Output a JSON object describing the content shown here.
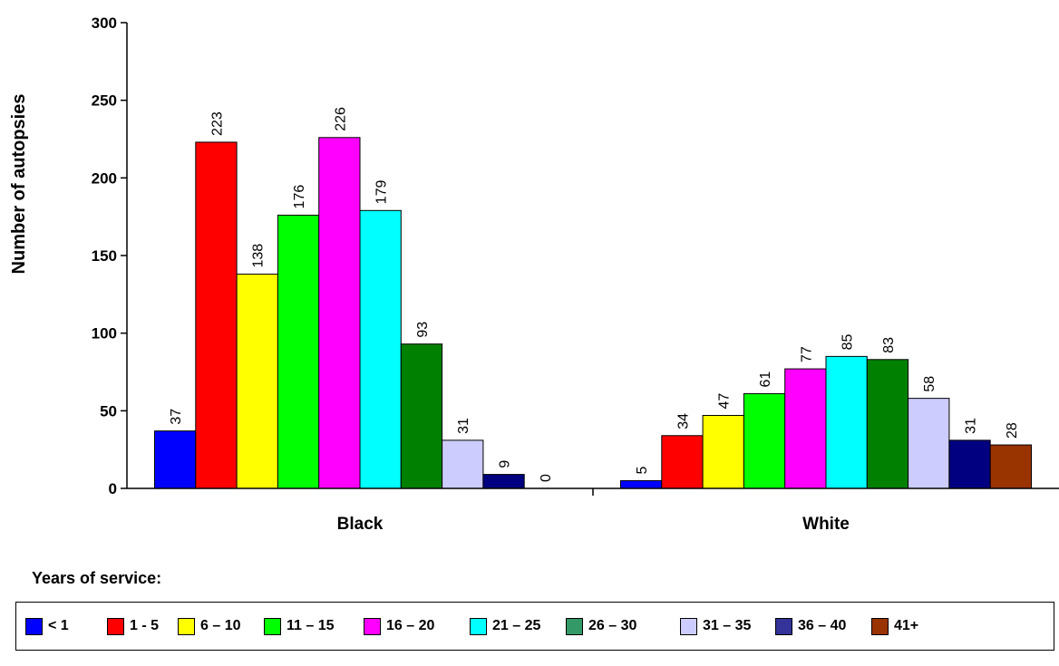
{
  "chart_data": {
    "type": "bar",
    "categories": [
      "Black",
      "White"
    ],
    "ylabel": "Number of autopsies",
    "xlabel": "",
    "ylim": [
      0,
      300
    ],
    "yticks": [
      0,
      50,
      100,
      150,
      200,
      250,
      300
    ],
    "grid": false,
    "legend_title": "Years of service:",
    "legend_position": "bottom",
    "series": [
      {
        "name": "< 1",
        "color": "#0000ff",
        "values": [
          37,
          5
        ]
      },
      {
        "name": "1 - 5",
        "color": "#ff0000",
        "values": [
          223,
          34
        ]
      },
      {
        "name": "6 – 10",
        "color": "#ffff00",
        "values": [
          138,
          47
        ]
      },
      {
        "name": "11 – 15",
        "color": "#00ff00",
        "values": [
          176,
          61
        ]
      },
      {
        "name": "16 – 20",
        "color": "#ff00ff",
        "values": [
          226,
          77
        ]
      },
      {
        "name": "21 – 25",
        "color": "#00ffff",
        "values": [
          179,
          85
        ]
      },
      {
        "name": "26 – 30",
        "color": "#008000",
        "legend_color": "#339966",
        "values": [
          93,
          83
        ]
      },
      {
        "name": "31 – 35",
        "color": "#ccccff",
        "values": [
          31,
          58
        ]
      },
      {
        "name": "36 – 40",
        "color": "#000080",
        "legend_color": "#333399",
        "values": [
          9,
          31
        ]
      },
      {
        "name": "41+",
        "color": "#993300",
        "values": [
          0,
          28
        ]
      }
    ]
  }
}
